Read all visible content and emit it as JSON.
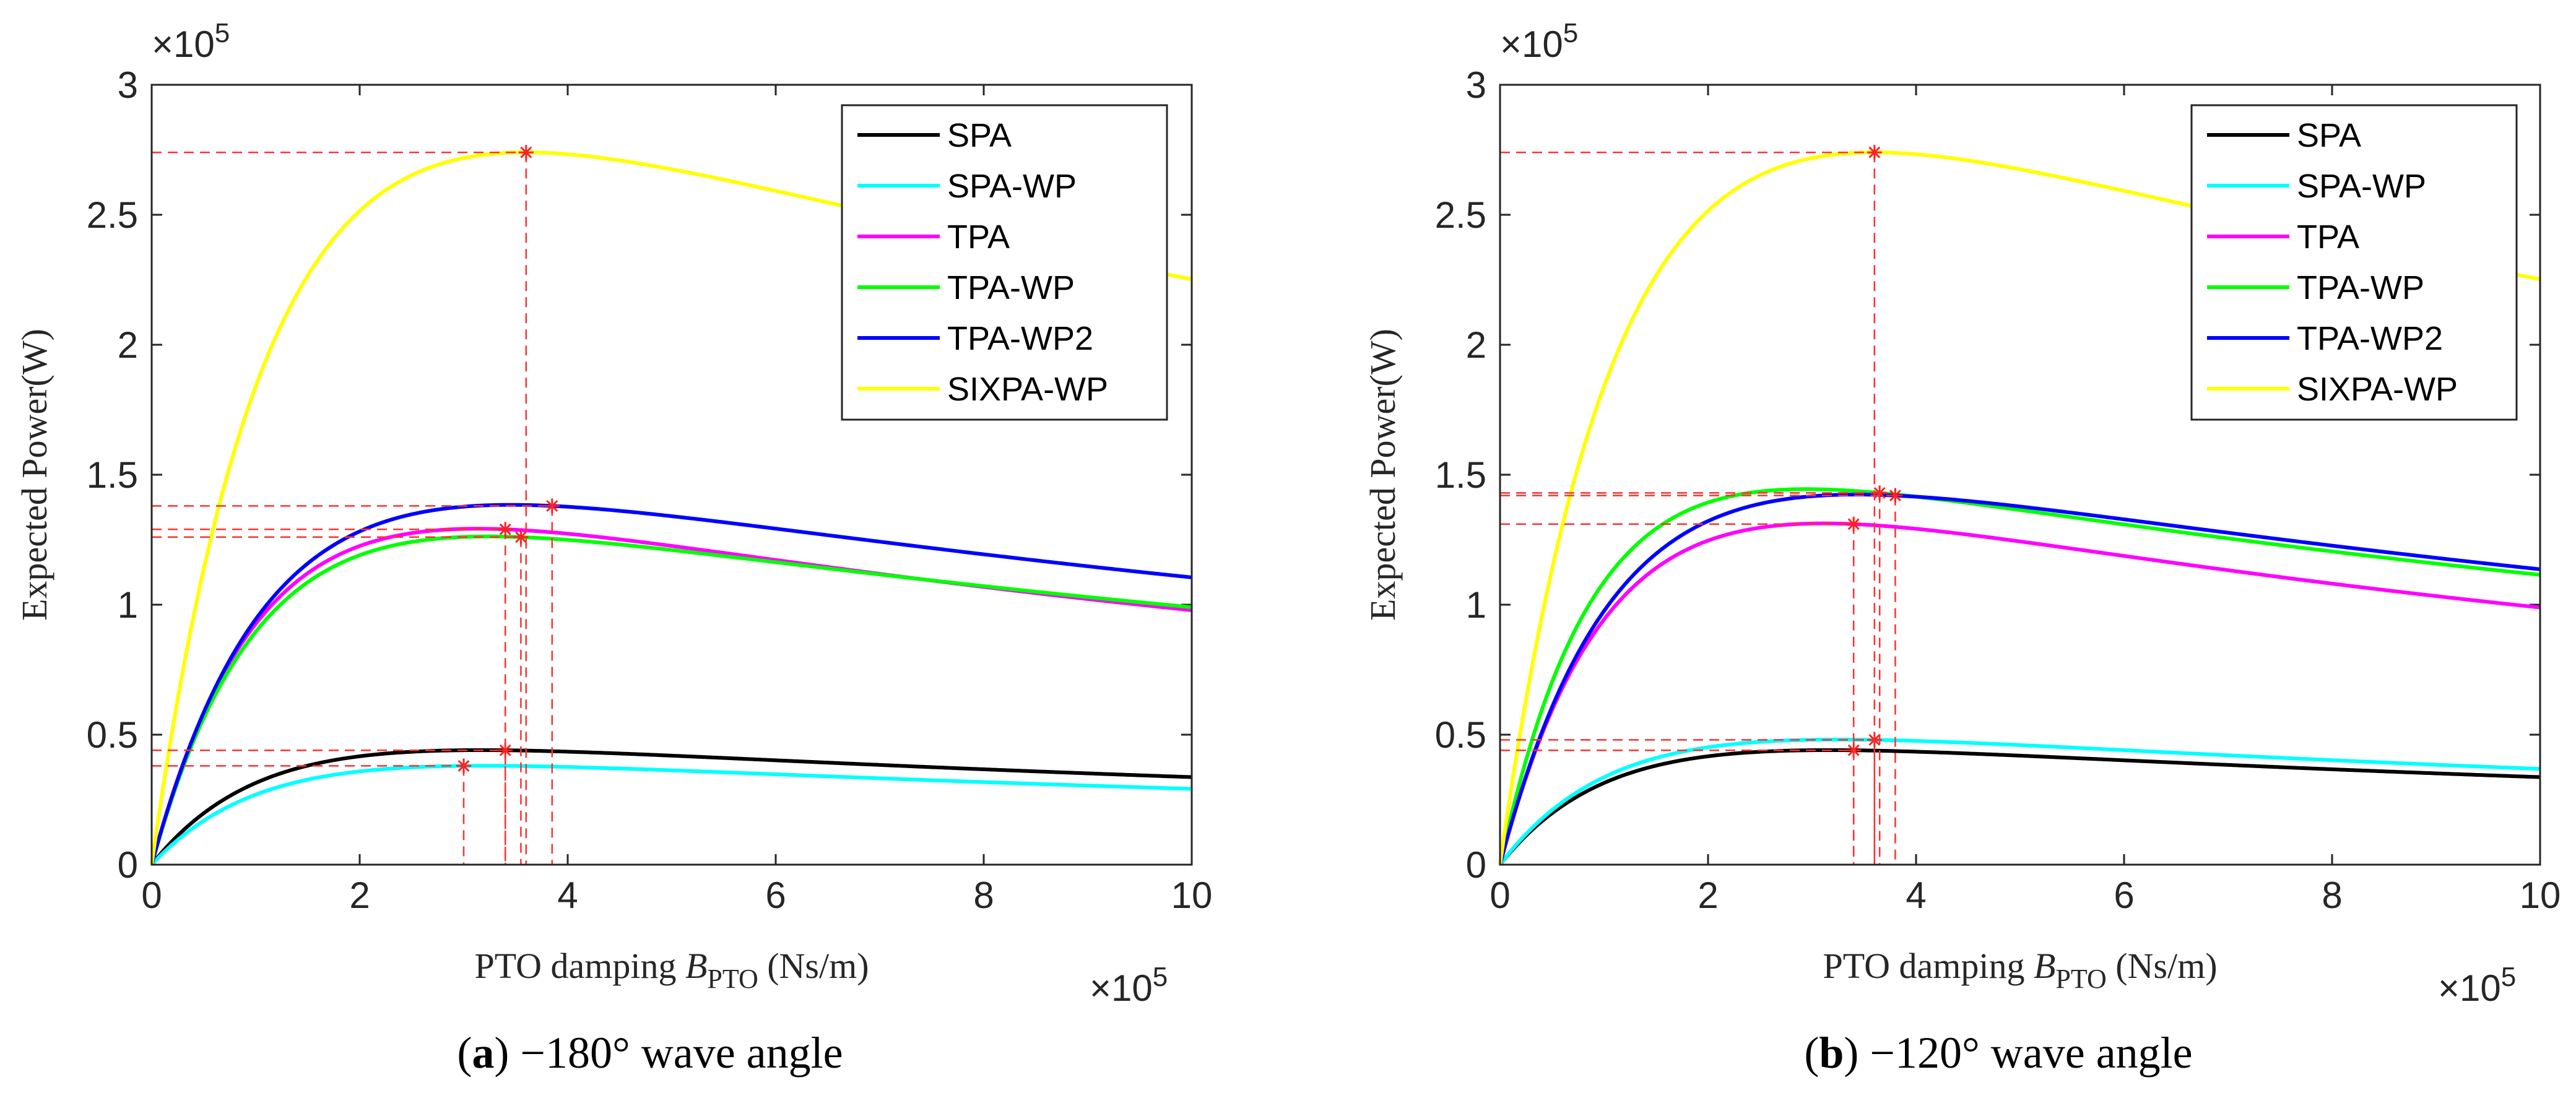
{
  "chart_data": [
    {
      "type": "line",
      "caption_letter": "a",
      "caption_text": " −180° wave angle",
      "xlabel_prefix": "PTO damping ",
      "xlabel_symbol": "B",
      "xlabel_subscript": "PTO",
      "xlabel_unit": " (Ns/m)",
      "ylabel": "Expected Power(W)",
      "x_exponent": "×10",
      "x_exponent_power": "5",
      "y_exponent": "×10",
      "y_exponent_power": "5",
      "xlim": [
        0,
        10
      ],
      "ylim": [
        0,
        3
      ],
      "xticks": [
        0,
        2,
        4,
        6,
        8,
        10
      ],
      "xtick_labels": [
        "0",
        "2",
        "4",
        "6",
        "8",
        "10"
      ],
      "yticks": [
        0,
        0.5,
        1,
        1.5,
        2,
        2.5,
        3
      ],
      "ytick_labels": [
        "0",
        "0.5",
        "1",
        "1.5",
        "2",
        "2.5",
        "3"
      ],
      "legend_position": "top-right",
      "series": [
        {
          "name": "SPA",
          "color": "#000000",
          "peak_x": 3.4,
          "peak_y": 0.44,
          "end_y": 0.32,
          "k": 3.0
        },
        {
          "name": "SPA-WP",
          "color": "#00ffff",
          "peak_x": 3.0,
          "peak_y": 0.38,
          "end_y": 0.27,
          "k": 2.6
        },
        {
          "name": "TPA",
          "color": "#ff00ff",
          "peak_x": 3.4,
          "peak_y": 1.29,
          "end_y": 0.93,
          "k": 3.0
        },
        {
          "name": "TPA-WP",
          "color": "#00ff00",
          "peak_x": 3.55,
          "peak_y": 1.26,
          "end_y": 0.95,
          "k": 3.2
        },
        {
          "name": "TPA-WP2",
          "color": "#0000ff",
          "peak_x": 3.85,
          "peak_y": 1.38,
          "end_y": 1.06,
          "k": 3.2
        },
        {
          "name": "SIXPA-WP",
          "color": "#ffff00",
          "peak_x": 3.6,
          "peak_y": 2.74,
          "end_y": 2.14,
          "k": 3.0
        }
      ]
    },
    {
      "type": "line",
      "caption_letter": "b",
      "caption_text": " −120° wave angle",
      "xlabel_prefix": "PTO damping ",
      "xlabel_symbol": "B",
      "xlabel_subscript": "PTO",
      "xlabel_unit": " (Ns/m)",
      "ylabel": "Expected Power(W)",
      "x_exponent": "×10",
      "x_exponent_power": "5",
      "y_exponent": "×10",
      "y_exponent_power": "5",
      "xlim": [
        0,
        10
      ],
      "ylim": [
        0,
        3
      ],
      "xticks": [
        0,
        2,
        4,
        6,
        8,
        10
      ],
      "xtick_labels": [
        "0",
        "2",
        "4",
        "6",
        "8",
        "10"
      ],
      "yticks": [
        0,
        0.5,
        1,
        1.5,
        2,
        2.5,
        3
      ],
      "ytick_labels": [
        "0",
        "0.5",
        "1",
        "1.5",
        "2",
        "2.5",
        "3"
      ],
      "legend_position": "top-right",
      "series": [
        {
          "name": "SPA",
          "color": "#000000",
          "peak_x": 3.4,
          "peak_y": 0.44,
          "end_y": 0.32,
          "k": 3.0
        },
        {
          "name": "SPA-WP",
          "color": "#00ffff",
          "peak_x": 3.6,
          "peak_y": 0.48,
          "end_y": 0.35,
          "k": 3.0
        },
        {
          "name": "TPA",
          "color": "#ff00ff",
          "peak_x": 3.4,
          "peak_y": 1.31,
          "end_y": 0.94,
          "k": 3.0
        },
        {
          "name": "TPA-WP",
          "color": "#00ff00",
          "peak_x": 3.65,
          "peak_y": 1.43,
          "end_y": 1.09,
          "k": 3.8
        },
        {
          "name": "TPA-WP2",
          "color": "#0000ff",
          "peak_x": 3.8,
          "peak_y": 1.42,
          "end_y": 1.09,
          "k": 3.2
        },
        {
          "name": "SIXPA-WP",
          "color": "#ffff00",
          "peak_x": 3.6,
          "peak_y": 2.74,
          "end_y": 2.14,
          "k": 3.0
        }
      ]
    }
  ]
}
